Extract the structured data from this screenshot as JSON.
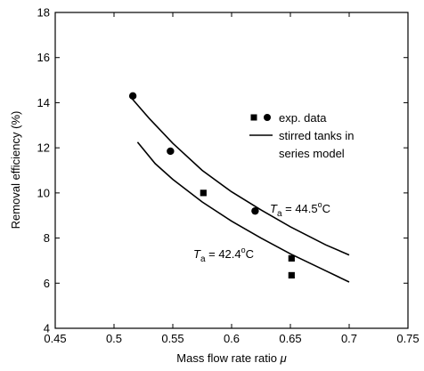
{
  "chart_data": {
    "type": "scatter",
    "xlabel": "Mass flow rate ratio",
    "xlabel_symbol": "μ",
    "ylabel": "Removal efficiency (%)",
    "xlim": [
      0.45,
      0.75
    ],
    "ylim": [
      4,
      18
    ],
    "xticks": [
      "0.45",
      "0.5",
      "0.55",
      "0.6",
      "0.65",
      "0.7",
      "0.75"
    ],
    "yticks": [
      "4",
      "6",
      "8",
      "10",
      "12",
      "14",
      "16",
      "18"
    ],
    "grid": false,
    "legend": {
      "position": "top-right",
      "data_label": "exp. data",
      "model_label_line1": "stirred tanks in",
      "model_label_line2": "series model"
    },
    "series": [
      {
        "marker": "circle",
        "points": [
          {
            "x": 0.516,
            "y": 14.3
          },
          {
            "x": 0.548,
            "y": 11.85
          },
          {
            "x": 0.62,
            "y": 9.2
          }
        ]
      },
      {
        "marker": "square",
        "points": [
          {
            "x": 0.576,
            "y": 10.0
          },
          {
            "x": 0.651,
            "y": 7.1
          },
          {
            "x": 0.651,
            "y": 6.35
          }
        ]
      }
    ],
    "model_curves": [
      {
        "annotation": {
          "prefix": "T",
          "subscript": "a",
          "value": " = 44.5",
          "sup": "o",
          "unit": "C"
        },
        "x": [
          0.515,
          0.53,
          0.55,
          0.575,
          0.6,
          0.625,
          0.65,
          0.68,
          0.7
        ],
        "y": [
          14.2,
          13.3,
          12.2,
          11.0,
          10.05,
          9.25,
          8.5,
          7.7,
          7.25
        ]
      },
      {
        "annotation": {
          "prefix": "T",
          "subscript": "a",
          "value": " = 42.4",
          "sup": "o",
          "unit": "C"
        },
        "x": [
          0.52,
          0.535,
          0.55,
          0.575,
          0.6,
          0.625,
          0.65,
          0.68,
          0.7
        ],
        "y": [
          12.25,
          11.3,
          10.6,
          9.6,
          8.75,
          8.0,
          7.3,
          6.55,
          6.05
        ]
      }
    ]
  }
}
